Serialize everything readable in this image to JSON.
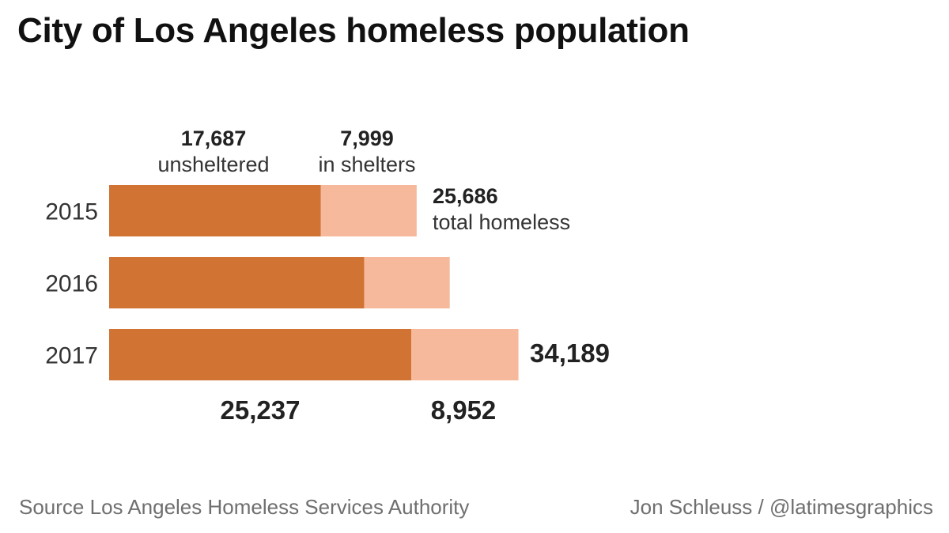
{
  "title": "City of Los Angeles homeless population",
  "chart_data": {
    "type": "bar",
    "orientation": "horizontal",
    "stacked": true,
    "categories": [
      "2015",
      "2016",
      "2017"
    ],
    "series": [
      {
        "name": "unsheltered",
        "color": "#d07333",
        "values": [
          17687,
          21300,
          25237
        ]
      },
      {
        "name": "in shelters",
        "color": "#f6b99b",
        "values": [
          7999,
          7150,
          8952
        ]
      }
    ],
    "totals": [
      25686,
      28450,
      34189
    ],
    "annotations": {
      "top_unsheltered_value": "17,687",
      "top_unsheltered_label": "unsheltered",
      "top_sheltered_value": "7,999",
      "top_sheltered_label": "in shelters",
      "total_2015_value": "25,686",
      "total_2015_label": "total homeless",
      "total_2017_value": "34,189",
      "bottom_unsheltered_value": "25,237",
      "bottom_sheltered_value": "8,952"
    },
    "grid": false,
    "legend": "inline-labels"
  },
  "footer": {
    "source": "Source Los Angeles Homeless Services Authority",
    "credit": "Jon Schleuss / @latimesgraphics"
  }
}
